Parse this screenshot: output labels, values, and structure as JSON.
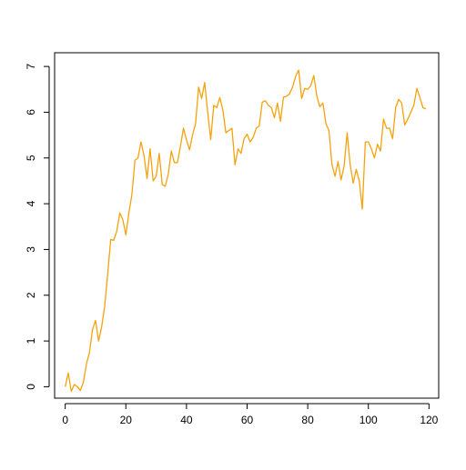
{
  "chart_data": {
    "type": "line",
    "title": "",
    "xlabel": "",
    "ylabel": "",
    "xlim": [
      -3.5,
      123.2
    ],
    "ylim": [
      -0.25,
      7.3
    ],
    "grid": false,
    "x_ticks": [
      0,
      20,
      40,
      60,
      80,
      100,
      120
    ],
    "y_ticks": [
      0,
      1,
      2,
      3,
      4,
      5,
      6,
      7
    ],
    "x_tick_labels": [
      "0",
      "20",
      "40",
      "60",
      "80",
      "100",
      "120"
    ],
    "y_tick_labels": [
      "0",
      "1",
      "2",
      "3",
      "4",
      "5",
      "6",
      "7"
    ],
    "series": [
      {
        "color": "#f5a20f",
        "x": [
          0,
          1,
          2,
          3,
          4,
          5,
          6,
          7,
          8,
          9,
          10,
          11,
          12,
          13,
          14,
          15,
          16,
          17,
          18,
          19,
          20,
          21,
          22,
          23,
          24,
          25,
          26,
          27,
          28,
          29,
          30,
          31,
          32,
          33,
          34,
          35,
          36,
          37,
          38,
          39,
          40,
          41,
          42,
          43,
          44,
          45,
          46,
          47,
          48,
          49,
          50,
          51,
          52,
          53,
          54,
          55,
          56,
          57,
          58,
          59,
          60,
          61,
          62,
          63,
          64,
          65,
          66,
          67,
          68,
          69,
          70,
          71,
          72,
          73,
          74,
          75,
          76,
          77,
          78,
          79,
          80,
          81,
          82,
          83,
          84,
          85,
          86,
          87,
          88,
          89,
          90,
          91,
          92,
          93,
          94,
          95,
          96,
          97,
          98,
          99,
          100,
          101,
          102,
          103,
          104,
          105,
          106,
          107,
          108,
          109,
          110,
          111,
          112,
          113,
          114,
          115,
          116,
          117,
          118,
          119
        ],
        "y": [
          0.0,
          0.3,
          -0.1,
          0.05,
          0.0,
          -0.08,
          0.1,
          0.5,
          0.75,
          1.25,
          1.45,
          1.0,
          1.3,
          1.75,
          2.45,
          3.22,
          3.2,
          3.4,
          3.8,
          3.65,
          3.32,
          3.8,
          4.2,
          4.95,
          5.0,
          5.35,
          5.05,
          4.55,
          5.2,
          4.5,
          4.6,
          5.1,
          4.42,
          4.38,
          4.65,
          5.15,
          4.9,
          4.9,
          5.25,
          5.65,
          5.4,
          5.18,
          5.5,
          5.75,
          6.55,
          6.3,
          6.65,
          6.0,
          5.4,
          6.15,
          6.1,
          6.32,
          6.05,
          5.55,
          5.6,
          5.65,
          4.85,
          5.2,
          5.1,
          5.42,
          5.52,
          5.35,
          5.45,
          5.65,
          5.7,
          6.22,
          6.25,
          6.15,
          6.1,
          5.88,
          6.2,
          5.8,
          6.33,
          6.35,
          6.4,
          6.55,
          6.78,
          6.92,
          6.3,
          6.52,
          6.5,
          6.58,
          6.8,
          6.35,
          6.12,
          6.2,
          5.75,
          5.6,
          4.85,
          4.6,
          4.92,
          4.52,
          4.82,
          5.55,
          4.85,
          4.45,
          4.75,
          4.5,
          3.88,
          5.35,
          5.35,
          5.2,
          5.0,
          5.3,
          5.15,
          5.85,
          5.65,
          5.65,
          5.42,
          6.1,
          6.28,
          6.2,
          5.72,
          5.85,
          6.0,
          6.15,
          6.52,
          6.32,
          6.1,
          6.07
        ]
      }
    ]
  }
}
